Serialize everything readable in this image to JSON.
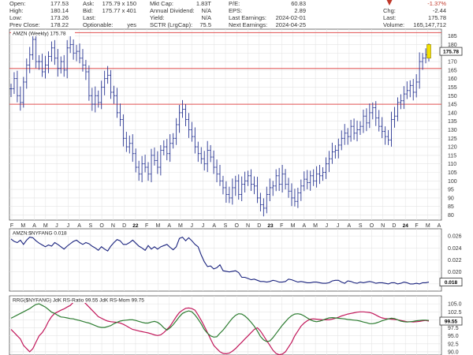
{
  "quote": {
    "col1": [
      {
        "label": "Open:",
        "value": "177.53"
      },
      {
        "label": "High:",
        "value": "180.14"
      },
      {
        "label": "Low:",
        "value": "173.26"
      },
      {
        "label": "Prev Close:",
        "value": "178.22"
      }
    ],
    "col2": [
      {
        "label": "Ask:",
        "value": "175.79 x 150"
      },
      {
        "label": "Bid:",
        "value": "175.77 x 401"
      },
      {
        "label": "Last:",
        "value": ""
      },
      {
        "label": "Optionable:",
        "value": "yes"
      }
    ],
    "col3": [
      {
        "label": "Mkt Cap:",
        "value": "1.83T"
      },
      {
        "label": "Annual Dividend:",
        "value": "N/A"
      },
      {
        "label": "Yield:",
        "value": "N/A"
      },
      {
        "label": "SCTR (LrgCap):",
        "value": "75.5"
      }
    ],
    "col4": [
      {
        "label": "P/E:",
        "value": "60.83"
      },
      {
        "label": "EPS:",
        "value": "2.89"
      },
      {
        "label": "Last Earnings:",
        "value": "2024-02-01"
      },
      {
        "label": "Next Earnings:",
        "value": "2024-04-25"
      }
    ],
    "col5": [
      {
        "label": "",
        "value": "-1.37%"
      },
      {
        "label": "Chg:",
        "value": "-2.44"
      },
      {
        "label": "Last:",
        "value": "175.78"
      },
      {
        "label": "Volume:",
        "value": "165,147,712"
      }
    ],
    "down_color": "#c0392b"
  },
  "chart_data": [
    {
      "type": "ohlc",
      "title": "AMZN (Weekly) 175.78",
      "last_value": "175.78",
      "y_ticks": [
        80,
        85,
        90,
        95,
        100,
        105,
        110,
        115,
        120,
        125,
        130,
        135,
        140,
        145,
        150,
        155,
        160,
        165,
        170,
        175,
        180,
        185
      ],
      "ylim": [
        77,
        189
      ],
      "horizontal_lines": [
        187,
        166,
        145
      ],
      "x_tick_labels": [
        "F",
        "M",
        "A",
        "M",
        "J",
        "J",
        "A",
        "S",
        "O",
        "N",
        "D",
        "22",
        "F",
        "M",
        "A",
        "M",
        "J",
        "J",
        "A",
        "S",
        "O",
        "N",
        "D",
        "23",
        "F",
        "M",
        "A",
        "M",
        "J",
        "J",
        "A",
        "S",
        "O",
        "N",
        "D",
        "24",
        "F",
        "M",
        "A"
      ],
      "bold_ticks": [
        "22",
        "23",
        "24"
      ],
      "closes": [
        154,
        160,
        150,
        146,
        158,
        168,
        174,
        183,
        170,
        170,
        164,
        168,
        173,
        178,
        172,
        166,
        170,
        165,
        178,
        180,
        175,
        176,
        172,
        168,
        164,
        150,
        145,
        150,
        146,
        155,
        160,
        162,
        152,
        150,
        140,
        136,
        125,
        120,
        122,
        116,
        108,
        104,
        110,
        108,
        104,
        115,
        112,
        108,
        118,
        120,
        116,
        122,
        125,
        133,
        140,
        142,
        136,
        130,
        126,
        120,
        116,
        113,
        110,
        118,
        114,
        108,
        104,
        100,
        96,
        92,
        90,
        96,
        100,
        92,
        98,
        100,
        103,
        98,
        97,
        90,
        86,
        84,
        92,
        96,
        97,
        103,
        98,
        104,
        98,
        94,
        90,
        88,
        93,
        97,
        101,
        99,
        103,
        100,
        104,
        103,
        105,
        110,
        113,
        117,
        118,
        121,
        125,
        128,
        126,
        132,
        128,
        130,
        132,
        138,
        134,
        140,
        143,
        137,
        132,
        129,
        126,
        124,
        136,
        138,
        146,
        147,
        151,
        153,
        156,
        152,
        158,
        170,
        172,
        174,
        176
      ]
    },
    {
      "type": "line",
      "title": "AMZN:$NYFANG 0.018",
      "last_value": "0.018",
      "y_ticks": [
        0.018,
        0.02,
        0.022,
        0.024,
        0.026
      ],
      "ylim": [
        0.0168,
        0.0272
      ],
      "series": [
        {
          "name": "AMZN:$NYFANG",
          "values": [
            0.0255,
            0.0251,
            0.0249,
            0.0253,
            0.0246,
            0.0253,
            0.0258,
            0.0257,
            0.0252,
            0.0248,
            0.0245,
            0.0242,
            0.0245,
            0.0243,
            0.0249,
            0.0246,
            0.0242,
            0.0238,
            0.0243,
            0.0247,
            0.0251,
            0.0253,
            0.0249,
            0.0246,
            0.0249,
            0.0247,
            0.0243,
            0.024,
            0.0236,
            0.0242,
            0.0238,
            0.0235,
            0.0243,
            0.0249,
            0.0254,
            0.0252,
            0.0246,
            0.0246,
            0.0249,
            0.0253,
            0.0248,
            0.0243,
            0.024,
            0.0236,
            0.0244,
            0.0238,
            0.0242,
            0.0238,
            0.0242,
            0.0244,
            0.0246,
            0.0241,
            0.0237,
            0.0242,
            0.0256,
            0.0258,
            0.0252,
            0.0257,
            0.0252,
            0.0246,
            0.0242,
            0.0228,
            0.0217,
            0.0209,
            0.021,
            0.0205,
            0.0207,
            0.0212,
            0.0202,
            0.0201,
            0.02,
            0.0201,
            0.0202,
            0.0199,
            0.0191,
            0.0191,
            0.0189,
            0.0187,
            0.0188,
            0.0186,
            0.0184,
            0.0184,
            0.0183,
            0.0184,
            0.0186,
            0.0185,
            0.0183,
            0.0183,
            0.0184,
            0.0188,
            0.0187,
            0.0185,
            0.0183,
            0.0184,
            0.0183,
            0.0182,
            0.0182,
            0.0183,
            0.0183,
            0.0182,
            0.0181,
            0.0181,
            0.0182,
            0.0185,
            0.0186,
            0.0186,
            0.0183,
            0.0181,
            0.0185,
            0.0184,
            0.0182,
            0.0181,
            0.0183,
            0.0182,
            0.0183,
            0.0184,
            0.0183,
            0.0181,
            0.0182,
            0.0182,
            0.0181,
            0.018,
            0.0182,
            0.0182,
            0.018,
            0.0181,
            0.0183,
            0.0182,
            0.018,
            0.018,
            0.0181,
            0.018,
            0.0182,
            0.0182,
            0.0183
          ]
        }
      ]
    },
    {
      "type": "line",
      "title": "RRG($NYFANG) JdK RS-Ratio 99.55 JdK RS-Mom 99.75",
      "last_value": "99.55",
      "y_ticks": [
        90.0,
        92.5,
        95.0,
        97.5,
        100.0,
        102.5,
        105.0
      ],
      "ylim": [
        89,
        107.5
      ],
      "series": [
        {
          "name": "JdK RS-Ratio",
          "color": "#c2185b",
          "values": [
            97,
            96,
            95,
            94,
            92,
            91,
            90,
            91,
            93,
            95,
            96,
            97.5,
            99.5,
            101,
            102,
            102.5,
            103,
            103.4,
            104,
            104.5,
            105.5,
            105.8,
            106,
            106,
            105,
            104,
            103,
            102,
            101,
            100.5,
            100,
            99.6,
            99.4,
            99.3,
            99.2,
            99.0,
            98.6,
            98.1,
            97.5,
            97.0,
            96.8,
            96.5,
            96.3,
            96.1,
            95.9,
            95.6,
            95.3,
            95.1,
            95.3,
            96,
            97,
            98,
            99.5,
            101,
            102.3,
            103,
            103.6,
            103.7,
            103.5,
            103,
            101.5,
            99.8,
            98,
            96,
            94,
            92,
            91,
            90,
            89.5,
            89.4,
            89.6,
            90.2,
            91,
            92,
            93,
            94,
            95,
            96,
            97,
            97.5,
            96.5,
            95,
            93.5,
            92,
            90.5,
            89.5,
            89.1,
            89.3,
            90,
            91.5,
            93,
            95,
            96.5,
            98,
            99,
            99.7,
            100.2,
            100.3,
            100.2,
            100.1,
            100,
            100,
            100,
            100.2,
            100.5,
            100.8,
            101.2,
            101.5,
            101.8,
            102,
            102.2,
            102.4,
            102.5,
            102.5,
            102.4,
            102.3,
            102,
            101.5,
            101,
            100.6,
            100.4,
            100.3,
            100.2,
            100.1,
            100,
            99.8,
            99.6,
            99.4,
            99.4,
            99.3,
            99.4,
            99.5,
            99.7,
            99.8,
            99.6
          ]
        },
        {
          "name": "JdK RS-Mom",
          "color": "#2e7d32",
          "values": [
            100.5,
            101,
            101.5,
            102,
            102.5,
            103,
            103.5,
            104.2,
            104.8,
            105,
            104.5,
            104,
            103.2,
            102.4,
            102,
            101.4,
            100.9,
            100.8,
            100.6,
            100.4,
            100.3,
            100,
            99.8,
            99.5,
            99.2,
            99,
            98.6,
            98.2,
            97.8,
            97.6,
            97.6,
            97.9,
            98.2,
            98.8,
            99.2,
            99.6,
            99.8,
            99.9,
            100,
            100,
            99.8,
            99.5,
            99.2,
            99,
            99,
            99.3,
            99.5,
            99.2,
            98.5,
            97.5,
            96.8,
            97.5,
            98.5,
            99.7,
            101,
            102,
            102.5,
            102.8,
            102.5,
            101.5,
            100.2,
            98.7,
            97,
            95.8,
            95,
            94.6,
            94.7,
            95.8,
            96.8,
            98,
            99.3,
            100.5,
            101.4,
            101.9,
            101.8,
            101.2,
            100.3,
            99.2,
            98,
            96.5,
            94.8,
            93.7,
            93.2,
            93.4,
            94.4,
            95.7,
            97,
            98.3,
            99.4,
            100.5,
            101.3,
            101.8,
            101.9,
            101.7,
            101.2,
            100.6,
            100,
            99.6,
            99.4,
            99.6,
            99.9,
            100.3,
            100.6,
            100.7,
            100.6,
            100.5,
            100.4,
            100.3,
            100.1,
            100,
            99.9,
            99.8,
            99.6,
            99.3,
            99.1,
            98.8,
            98.8,
            99,
            99.3,
            99.7,
            100,
            100.3,
            100.5,
            100.4,
            100,
            99.6,
            99.4,
            99.3,
            99.4,
            99.5,
            99.7,
            99.8,
            99.9,
            99.9,
            99.8
          ]
        }
      ]
    }
  ]
}
